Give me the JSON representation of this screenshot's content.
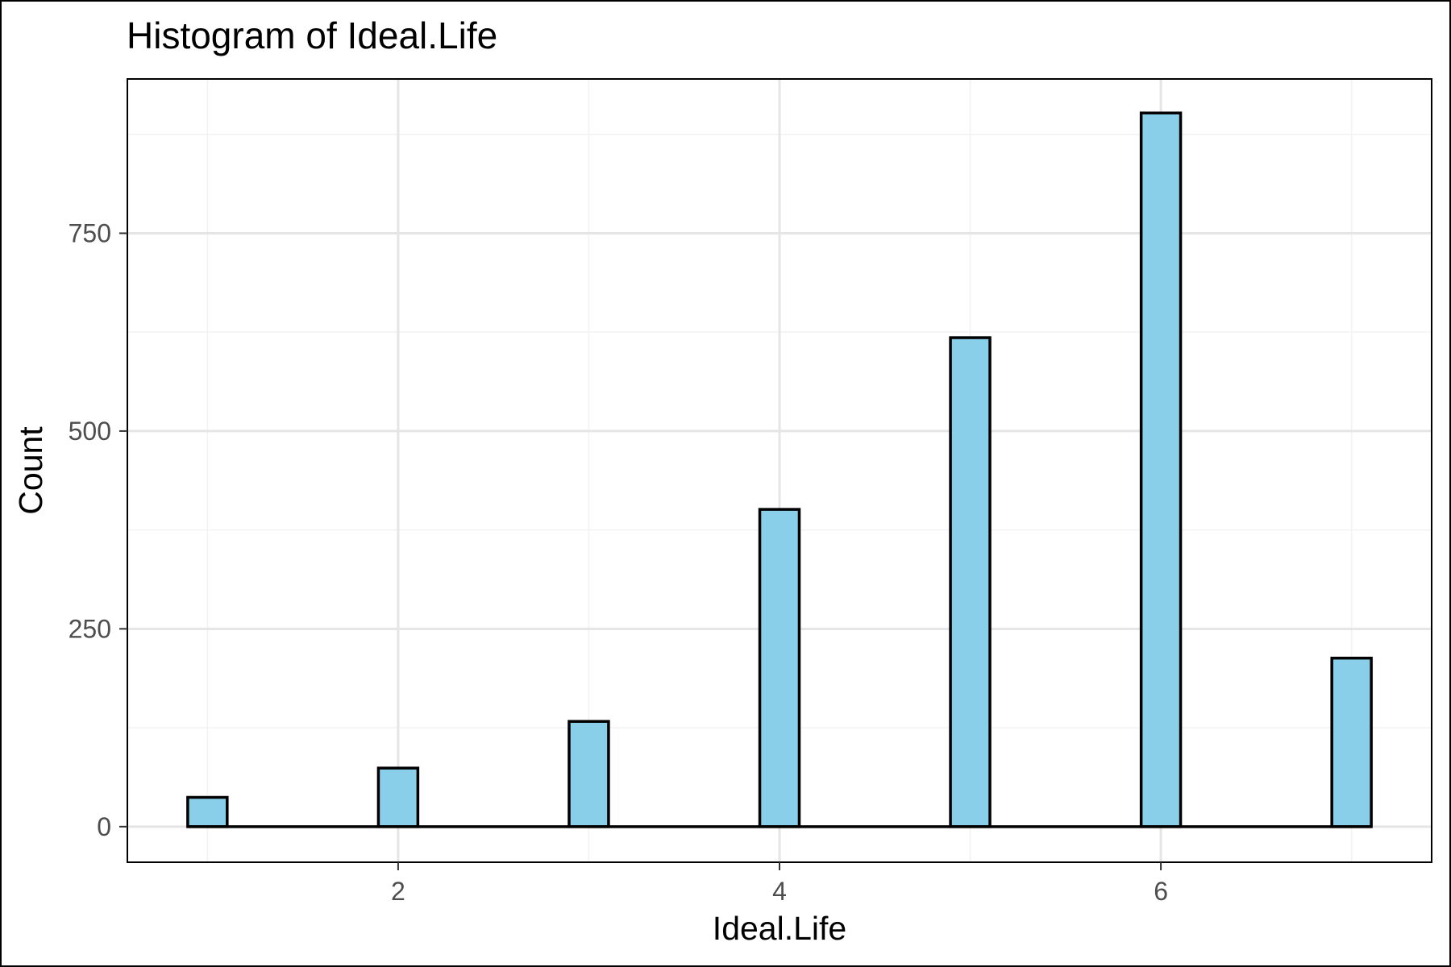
{
  "chart_data": {
    "type": "bar",
    "title": "Histogram of Ideal.Life",
    "xlabel": "Ideal.Life",
    "ylabel": "Count",
    "x": [
      1,
      2,
      3,
      4,
      5,
      6,
      7
    ],
    "values": [
      37,
      74,
      133,
      401,
      618,
      902,
      213
    ],
    "bin_width": 0.2069,
    "xlim": [
      0.58,
      7.42
    ],
    "ylim": [
      -45,
      945
    ],
    "x_ticks": [
      2,
      4,
      6
    ],
    "x_tick_labels": [
      "2",
      "4",
      "6"
    ],
    "y_ticks": [
      0,
      250,
      500,
      750
    ],
    "y_tick_labels": [
      "0",
      "250",
      "500",
      "750"
    ],
    "x_minor_ticks": [
      1,
      3,
      5,
      7
    ],
    "y_minor_ticks": [
      125,
      375,
      625,
      875
    ],
    "grid": true,
    "colors": {
      "bar_fill": "#89CFEA",
      "bar_stroke": "#000000",
      "grid_major": "#E5E5E5",
      "grid_minor": "#F2F2F2",
      "panel_border": "#000000",
      "tick_label": "#4D4D4D",
      "text": "#000000"
    }
  }
}
